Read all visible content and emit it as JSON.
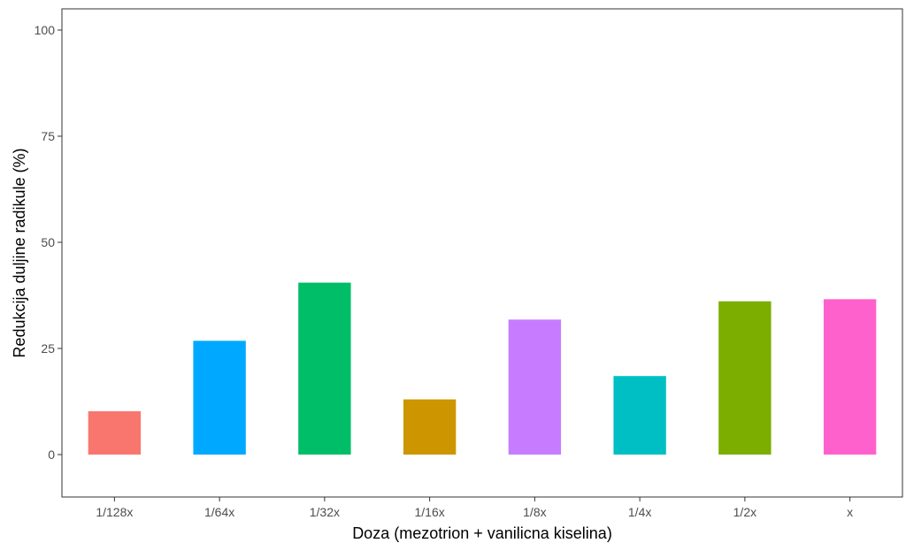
{
  "chart_data": {
    "type": "bar",
    "xlabel": "Doza (mezotrion + vanilicna kiselina)",
    "ylabel": "Redukcija duljine radikule (%)",
    "ylim": [
      -10,
      105
    ],
    "yticks": [
      0,
      25,
      50,
      75,
      100
    ],
    "grid": false,
    "categories": [
      "1/128x",
      "1/64x",
      "1/32x",
      "1/16x",
      "1/8x",
      "1/4x",
      "1/2x",
      "x"
    ],
    "values": [
      10.2,
      26.8,
      40.5,
      13.0,
      31.8,
      18.5,
      36.1,
      36.6
    ],
    "colors": [
      "#F8766D",
      "#00A9FF",
      "#00BE67",
      "#CD9600",
      "#C77CFF",
      "#00BFC4",
      "#7CAE00",
      "#FF61CC"
    ]
  }
}
